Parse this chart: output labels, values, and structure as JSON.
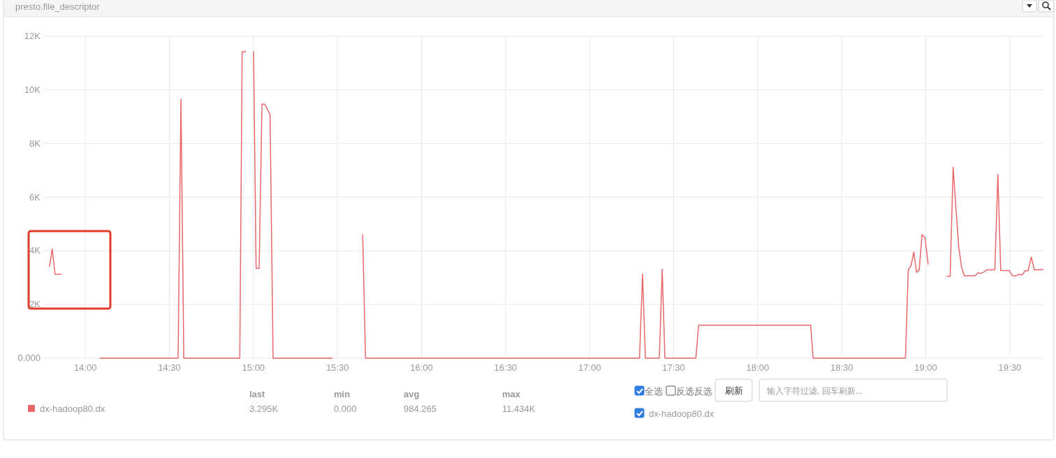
{
  "chart_data": {
    "type": "line",
    "title": "presto.file_descriptor",
    "series": [
      {
        "name": "dx-hadoop80.dx",
        "color": "#e8676b",
        "x": [
          13.787,
          13.803,
          13.82,
          13.856
        ],
        "values": [
          3420,
          4070,
          3130,
          3130
        ]
      },
      {
        "color": "#e8676b",
        "x": [
          14.086,
          14.552,
          14.569,
          14.586,
          14.919,
          14.933,
          14.954
        ],
        "values": [
          0,
          0,
          9660,
          0,
          0,
          11420,
          11430
        ]
      },
      {
        "color": "#e8676b",
        "x": [
          15.001,
          15.016,
          15.034,
          15.051,
          15.067,
          15.099,
          15.117,
          15.47
        ],
        "values": [
          11430,
          3350,
          3350,
          9470,
          9470,
          9080,
          0,
          0
        ]
      },
      {
        "color": "#e8676b",
        "x": [
          15.65,
          15.667,
          17.297,
          17.315,
          17.332,
          17.415,
          17.432,
          17.448,
          17.632,
          17.649,
          18.315,
          18.33,
          18.879,
          18.896,
          18.913,
          18.929,
          18.945,
          18.961,
          18.978,
          18.996,
          19.014
        ],
        "values": [
          4610,
          0,
          0,
          3140,
          0,
          0,
          3310,
          0,
          0,
          1230,
          1230,
          0,
          0,
          3290,
          3460,
          3960,
          3200,
          3290,
          4610,
          4490,
          3500
        ]
      },
      {
        "color": "#e8676b",
        "x": [
          19.127,
          19.145,
          19.163,
          19.18,
          19.196,
          19.213,
          19.23,
          19.294,
          19.311,
          19.328,
          19.346,
          19.363,
          19.411,
          19.429,
          19.446,
          19.496,
          19.516,
          19.536,
          19.556,
          19.573,
          19.591,
          19.609,
          19.628,
          19.646,
          19.697
        ],
        "values": [
          3050,
          3050,
          7120,
          5540,
          4160,
          3380,
          3070,
          3070,
          3180,
          3160,
          3210,
          3290,
          3290,
          6850,
          3270,
          3270,
          3070,
          3070,
          3130,
          3100,
          3260,
          3260,
          3770,
          3290,
          3300
        ]
      }
    ],
    "xlim": [
      13.75,
      19.7
    ],
    "ylim": [
      0,
      12000
    ],
    "xticks": [
      {
        "value": 14,
        "label": "14:00"
      },
      {
        "value": 14.5,
        "label": "14:30"
      },
      {
        "value": 15,
        "label": "15:00"
      },
      {
        "value": 15.5,
        "label": "15:30"
      },
      {
        "value": 16,
        "label": "16:00"
      },
      {
        "value": 16.5,
        "label": "16:30"
      },
      {
        "value": 17,
        "label": "17:00"
      },
      {
        "value": 17.5,
        "label": "17:30"
      },
      {
        "value": 18,
        "label": "18:00"
      },
      {
        "value": 18.5,
        "label": "18:30"
      },
      {
        "value": 19,
        "label": "19:00"
      },
      {
        "value": 19.5,
        "label": "19:30"
      }
    ],
    "yticks": [
      {
        "value": 0,
        "label": "0.000"
      },
      {
        "value": 2000,
        "label": "2K"
      },
      {
        "value": 4000,
        "label": "4K"
      },
      {
        "value": 6000,
        "label": "6K"
      },
      {
        "value": 8000,
        "label": "8K"
      },
      {
        "value": 10000,
        "label": "10K"
      },
      {
        "value": 12000,
        "label": "12K"
      }
    ],
    "grid": true,
    "legend": "bottom left",
    "annotations": [
      "last",
      "min",
      "avg",
      "max",
      "3.295K",
      "0.000",
      "984.265",
      "11.434K",
      "全选",
      "反选反选",
      "刷新",
      "输入字符过滤, 回车刷新..."
    ]
  }
}
